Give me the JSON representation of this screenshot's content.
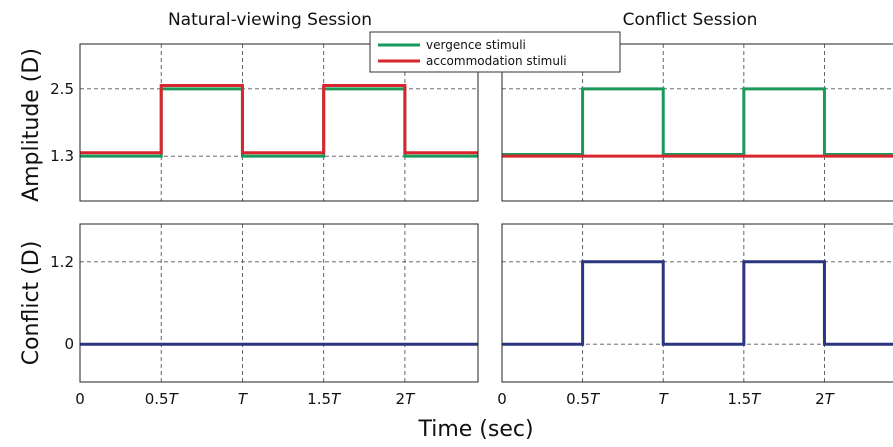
{
  "chart_data": {
    "type": "line",
    "xlabel": "Time (sec)",
    "x_ticks": [
      {
        "value": 0,
        "num": "0",
        "it": ""
      },
      {
        "value": 0.5,
        "num": "0.5",
        "it": "T"
      },
      {
        "value": 1,
        "num": "",
        "it": "T"
      },
      {
        "value": 1.5,
        "num": "1.5",
        "it": "T"
      },
      {
        "value": 2,
        "num": "2",
        "it": "T"
      }
    ],
    "columns": [
      {
        "title": "Natural-viewing Session"
      },
      {
        "title": "Conflict Session"
      }
    ],
    "rows": [
      {
        "ylabel": "Amplitude (D)",
        "ylim": [
          0.5,
          3.3
        ],
        "y_ticks": [
          {
            "value": 1.3,
            "label": "1.3"
          },
          {
            "value": 2.5,
            "label": "2.5"
          }
        ]
      },
      {
        "ylabel": "Conflict (D)",
        "ylim": [
          -0.55,
          1.75
        ],
        "y_ticks": [
          {
            "value": 0,
            "label": "0"
          },
          {
            "value": 1.2,
            "label": "1.2"
          }
        ]
      }
    ],
    "legend": {
      "position": "top-center",
      "entries": [
        {
          "name": "vergence stimuli",
          "color": "#1a9a5a"
        },
        {
          "name": "accommodation stimuli",
          "color": "#d8262e"
        }
      ]
    },
    "panels": [
      {
        "row": 0,
        "col": 0,
        "xlim": [
          0,
          2.45
        ],
        "series": [
          {
            "name": "vergence stimuli",
            "color": "#1a9a5a",
            "step": true,
            "x": [
              0,
              0.5,
              1,
              1.5,
              2,
              2.45
            ],
            "y": [
              1.3,
              2.5,
              1.3,
              2.5,
              1.3,
              1.3
            ]
          },
          {
            "name": "accommodation stimuli",
            "color": "#d8262e",
            "step": true,
            "x": [
              0,
              0.5,
              1,
              1.5,
              2,
              2.45
            ],
            "y": [
              1.36,
              2.56,
              1.36,
              2.56,
              1.36,
              1.36
            ]
          }
        ]
      },
      {
        "row": 0,
        "col": 1,
        "xlim": [
          0,
          2.45
        ],
        "series": [
          {
            "name": "vergence stimuli",
            "color": "#1a9a5a",
            "step": true,
            "x": [
              0,
              0.5,
              1,
              1.5,
              2,
              2.45
            ],
            "y": [
              1.33,
              2.5,
              1.33,
              2.5,
              1.33,
              1.33
            ]
          },
          {
            "name": "accommodation stimuli",
            "color": "#d8262e",
            "step": true,
            "x": [
              0,
              2.45
            ],
            "y": [
              1.3,
              1.3
            ]
          }
        ]
      },
      {
        "row": 1,
        "col": 0,
        "xlim": [
          0,
          2.45
        ],
        "series": [
          {
            "name": "conflict",
            "color": "#2b3580",
            "step": true,
            "x": [
              0,
              2.45
            ],
            "y": [
              0,
              0
            ]
          }
        ]
      },
      {
        "row": 1,
        "col": 1,
        "xlim": [
          0,
          2.45
        ],
        "series": [
          {
            "name": "conflict",
            "color": "#2b3580",
            "step": true,
            "x": [
              0,
              0.5,
              1,
              1.5,
              2,
              2.45
            ],
            "y": [
              0,
              1.2,
              0,
              1.2,
              0,
              0
            ]
          }
        ]
      }
    ],
    "grid": "dashed at tick values"
  }
}
